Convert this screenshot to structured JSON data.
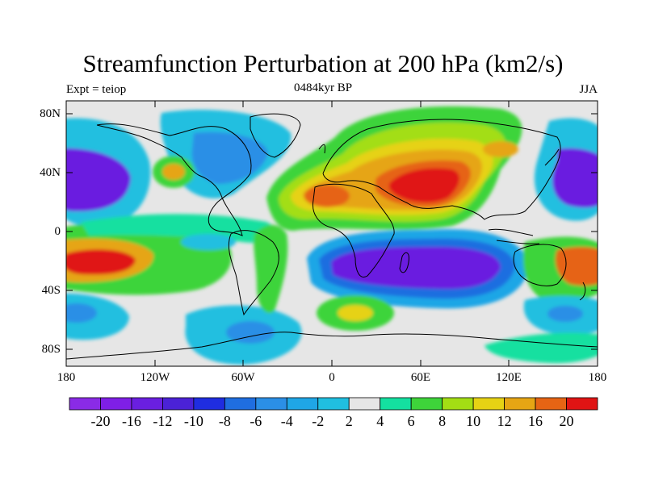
{
  "header": {
    "title": "Streamfunction Perturbation at 200 hPa (km2/s)",
    "left_string": "Expt = teiop",
    "center_string": "0484kyr BP",
    "right_string": "JJA"
  },
  "map": {
    "projection": "cylindrical-equidistant",
    "lon_range": [
      -180,
      180
    ],
    "lat_range": [
      -90,
      90
    ],
    "lat_tick_labels": [
      "80N",
      "40N",
      "0",
      "40S",
      "80S"
    ],
    "lon_tick_labels": [
      "180",
      "120W",
      "60W",
      "0",
      "60E",
      "120E",
      "180"
    ],
    "background_color": "#e6e6e6"
  },
  "colorbar": {
    "labels": [
      "-20",
      "-16",
      "-12",
      "-10",
      "-8",
      "-6",
      "-4",
      "-2",
      "2",
      "4",
      "6",
      "8",
      "10",
      "12",
      "16",
      "20"
    ],
    "colors": [
      "#7f1fe6",
      "#6a1fe0",
      "#4b22d6",
      "#1f2de0",
      "#1f6ee0",
      "#2b8fe6",
      "#1fa6e6",
      "#20bfe0",
      "#e6e6e6",
      "#14e0a0",
      "#3ed43a",
      "#a3de14",
      "#e6d214",
      "#e6a514",
      "#e66414",
      "#e01414"
    ]
  }
}
